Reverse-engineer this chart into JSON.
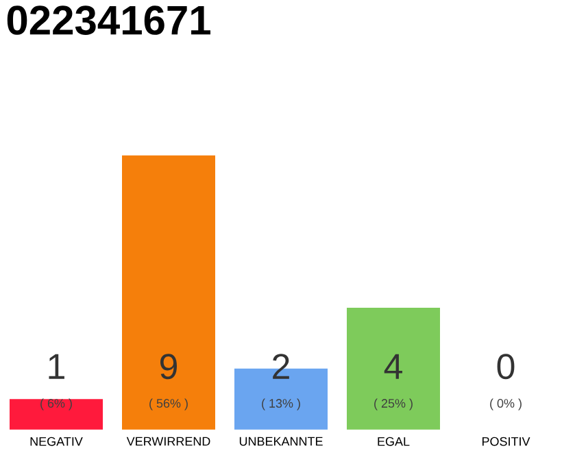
{
  "chart_data": {
    "type": "bar",
    "title": "022341671",
    "categories": [
      "NEGATIV",
      "VERWIRREND",
      "UNBEKANNTE",
      "EGAL",
      "POSITIV"
    ],
    "values": [
      1,
      9,
      2,
      4,
      0
    ],
    "colors": [
      "#ff1a3c",
      "#f57f0b",
      "#6aa5f0",
      "#7ecb5b",
      "#cccccc"
    ],
    "data_labels": true,
    "annotations": [
      "( 6% )",
      "( 56% )",
      "( 13% )",
      "( 25% )",
      "( 0% )"
    ]
  }
}
